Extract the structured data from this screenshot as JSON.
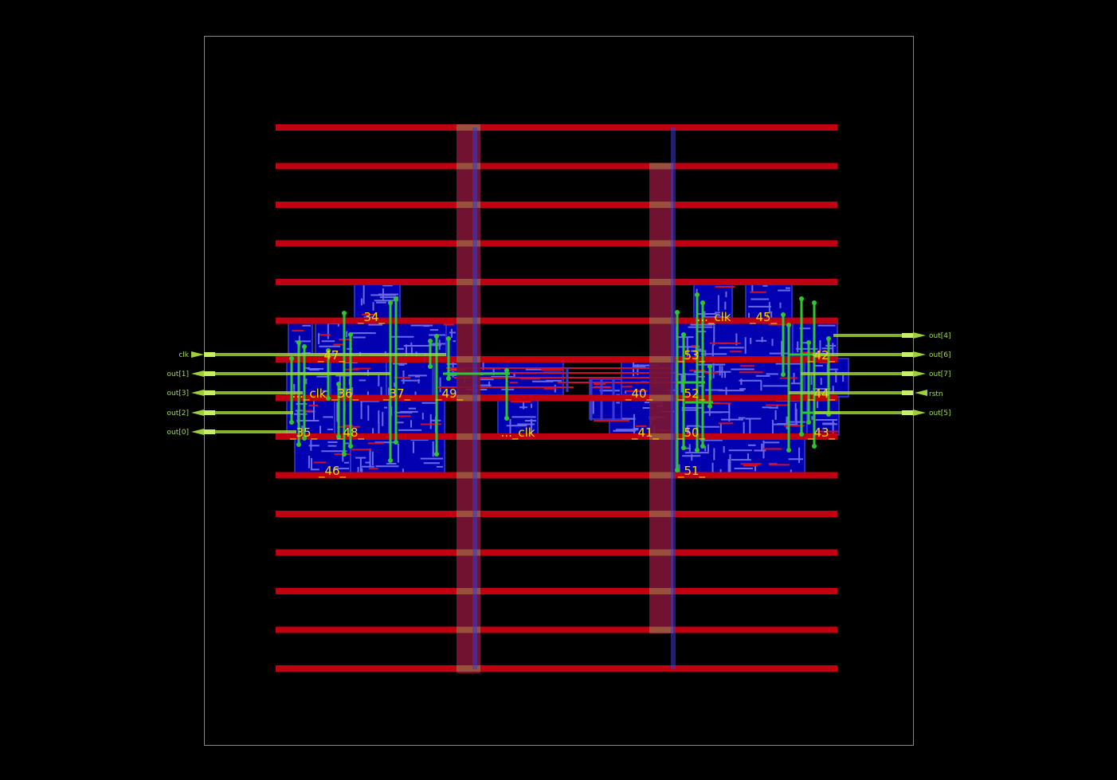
{
  "colors": {
    "background": "#000000",
    "die_outline": "#8a8a8a",
    "power_rail": "#c00010",
    "power_strap": "#7a1434",
    "strap_via": "#a06040",
    "metal1": "#3a3ad0",
    "metal2": "#c00018",
    "cell_fill": "#0000b0",
    "net_highlight": "#2ec62e",
    "pin": "#9fd03a",
    "label": "#ffd400"
  },
  "cell_labels": [
    "_34_",
    "..._clk",
    "_45_",
    "_47_",
    "_53_",
    "_42_",
    "..._clk",
    "_36_",
    "_37_",
    "_49_",
    "_40_",
    "_52_",
    "_44_",
    "_35_",
    "_48_",
    "..._clk",
    "_41_",
    "_50_",
    "_43_",
    "_46_",
    "_51_"
  ],
  "pins_left": [
    "clk",
    "out[1]",
    "out[3]",
    "out[2]",
    "out[0]"
  ],
  "pins_right": [
    "out[4]",
    "out[6]",
    "out[7]",
    "rstn",
    "out[5]"
  ],
  "icons": {
    "input_pin": "arrow-right-icon",
    "output_pin": "arrow-left-icon"
  }
}
